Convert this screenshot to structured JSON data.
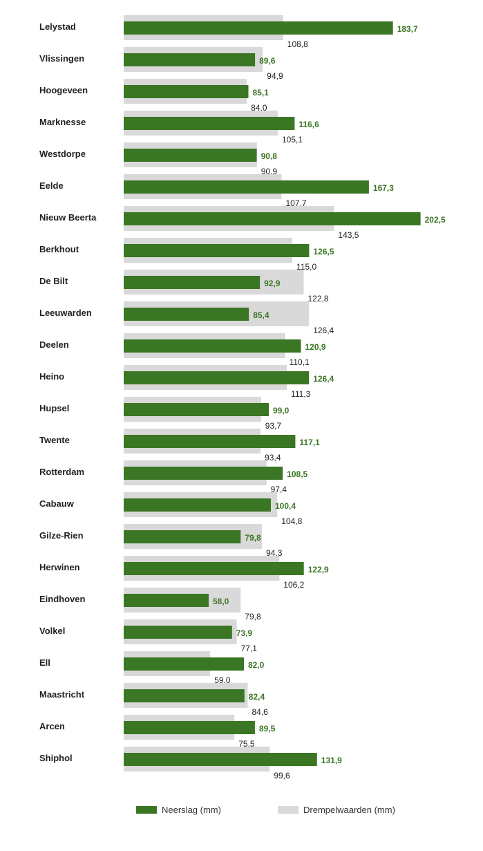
{
  "chart_data": {
    "type": "bar",
    "orientation": "horizontal",
    "categories": [
      "Lelystad",
      "Vlissingen",
      "Hoogeveen",
      "Marknesse",
      "Westdorpe",
      "Eelde",
      "Nieuw Beerta",
      "Berkhout",
      "De Bilt",
      "Leeuwarden",
      "Deelen",
      "Heino",
      "Hupsel",
      "Twente",
      "Rotterdam",
      "Cabauw",
      "Gilze-Rien",
      "Herwinen",
      "Eindhoven",
      "Volkel",
      "Ell",
      "Maastricht",
      "Arcen",
      "Shiphol"
    ],
    "series": [
      {
        "name": "Neerslag (mm)",
        "color": "#3a7623",
        "values": [
          183.7,
          89.6,
          85.1,
          116.6,
          90.8,
          167.3,
          202.5,
          126.5,
          92.9,
          85.4,
          120.9,
          126.4,
          99.0,
          117.1,
          108.5,
          100.4,
          79.8,
          122.9,
          58.0,
          73.9,
          82.0,
          82.4,
          89.5,
          131.9
        ],
        "labels": [
          "183,7",
          "89,6",
          "85,1",
          "116,6",
          "90,8",
          "167,3",
          "202,5",
          "126,5",
          "92,9",
          "85,4",
          "120,9",
          "126,4",
          "99,0",
          "117,1",
          "108,5",
          "100,4",
          "79,8",
          "122,9",
          "58,0",
          "73,9",
          "82,0",
          "82,4",
          "89,5",
          "131,9"
        ]
      },
      {
        "name": "Drempelwaarden (mm)",
        "color": "#d9d9d9",
        "values": [
          108.8,
          94.9,
          84.0,
          105.1,
          90.9,
          107.7,
          143.5,
          115.0,
          122.8,
          126.4,
          110.1,
          111.3,
          93.7,
          93.4,
          97.4,
          104.8,
          94.3,
          106.2,
          79.8,
          77.1,
          59.0,
          84.6,
          75.5,
          99.6
        ],
        "labels": [
          "108,8",
          "94,9",
          "84,0",
          "105,1",
          "90,9",
          "107,7",
          "143,5",
          "115,0",
          "122,8",
          "126,4",
          "110,1",
          "111,3",
          "93,7",
          "93,4",
          "97,4",
          "104,8",
          "94,3",
          "106,2",
          "79,8",
          "77,1",
          "59,0",
          "84,6",
          "75,5",
          "99,6"
        ]
      }
    ],
    "xlim": [
      0,
      202.5
    ],
    "xlabel": "",
    "ylabel": "",
    "legend_position": "bottom",
    "grid": false
  }
}
